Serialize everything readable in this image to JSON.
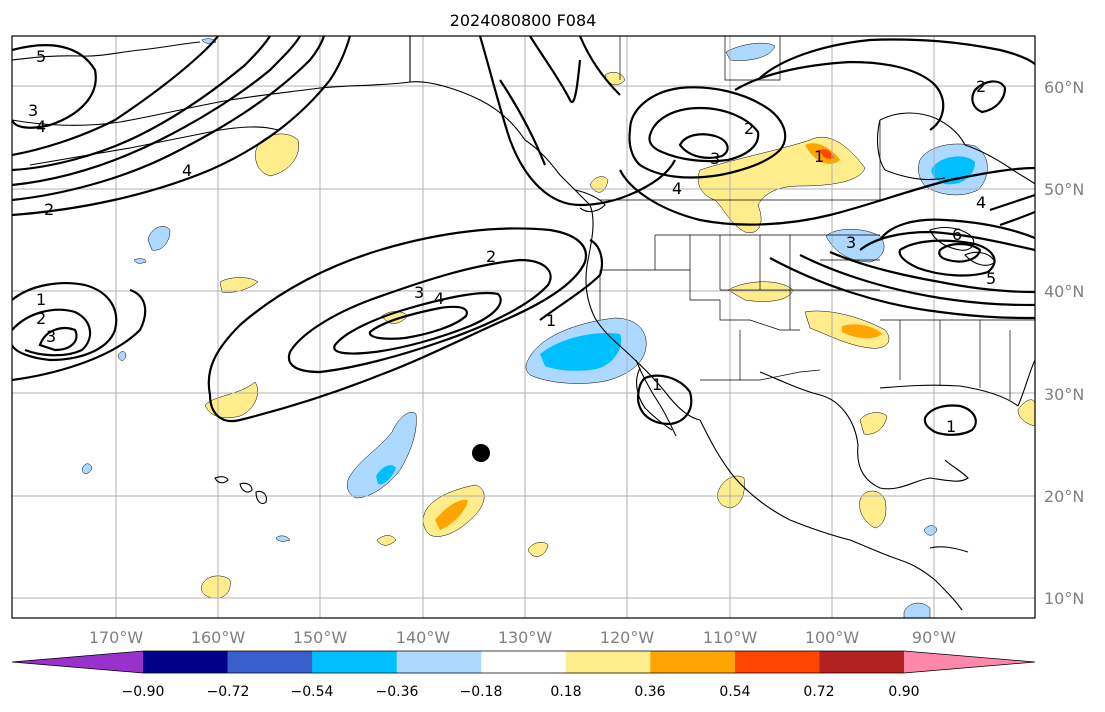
{
  "title": "2024080800 F084",
  "lat_labels": [
    "60°N",
    "50°N",
    "40°N",
    "30°N",
    "20°N",
    "10°N"
  ],
  "lon_labels": [
    "170°W",
    "160°W",
    "150°W",
    "140°W",
    "130°W",
    "120°W",
    "110°W",
    "100°W",
    "90°W"
  ],
  "colorbar": {
    "colors": [
      "#9932cc",
      "#00008b",
      "#3a5fcd",
      "#00bfff",
      "#add8ff",
      "#ffffff",
      "#ffec8b",
      "#ffa500",
      "#ff4500",
      "#b22222",
      "#ff88aa"
    ],
    "tick_labels": [
      "−0.90",
      "−0.72",
      "−0.54",
      "−0.36",
      "−0.18",
      "0.18",
      "0.36",
      "0.54",
      "0.72",
      "0.90"
    ]
  },
  "contour_labels": {
    "c_a": "5",
    "c_b": "4",
    "c_c": "3",
    "c_d": "2",
    "c_e": "4",
    "c_f": "1",
    "c_g": "2",
    "c_h": "3",
    "c_i": "2",
    "c_j": "3",
    "c_k": "4",
    "c_l": "1",
    "c_m": "2",
    "c_n": "3",
    "c_o": "4",
    "c_p": "1",
    "c_q": "2",
    "c_r": "3",
    "c_s": "4",
    "c_t": "6",
    "c_u": "5",
    "c_v": "1",
    "c_w": "1"
  },
  "fill_colors": {
    "light_blue": "#add8ff",
    "blue": "#00bfff",
    "yellow": "#ffec8b",
    "orange": "#ffa500",
    "red_orange": "#ff4500"
  }
}
